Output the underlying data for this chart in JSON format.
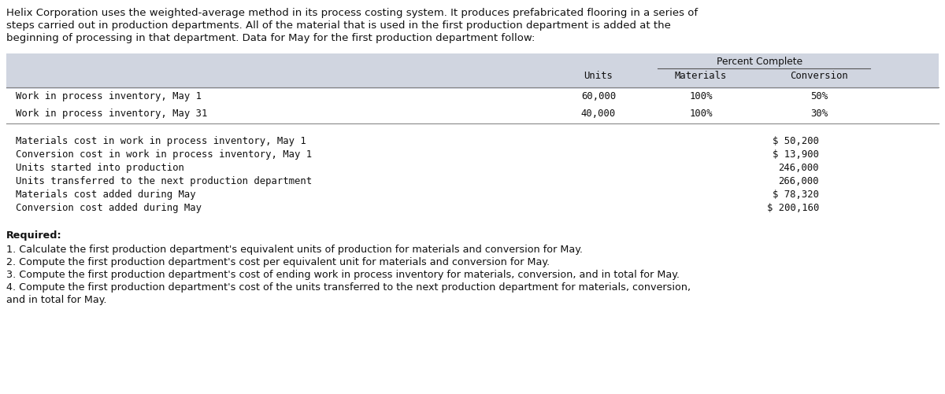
{
  "bg_color": "#ffffff",
  "intro_lines": [
    "Helix Corporation uses the weighted-average method in its process costing system. It produces prefabricated flooring in a series of",
    "steps carried out in production departments. All of the material that is used in the first production department is added at the",
    "beginning of processing in that department. Data for May for the first production department follow:"
  ],
  "table_header_group": "Percent Complete",
  "table_col_headers": [
    "Units",
    "Materials",
    "Conversion"
  ],
  "table_rows": [
    [
      "Work in process inventory, May 1",
      "60,000",
      "100%",
      "50%"
    ],
    [
      "Work in process inventory, May 31",
      "40,000",
      "100%",
      "30%"
    ]
  ],
  "data_rows": [
    [
      "Materials cost in work in process inventory, May 1",
      "$ 50,200"
    ],
    [
      "Conversion cost in work in process inventory, May 1",
      "$ 13,900"
    ],
    [
      "Units started into production",
      "246,000"
    ],
    [
      "Units transferred to the next production department",
      "266,000"
    ],
    [
      "Materials cost added during May",
      "$ 78,320"
    ],
    [
      "Conversion cost added during May",
      "$ 200,160"
    ]
  ],
  "required_label": "Required:",
  "required_items": [
    "1. Calculate the first production department's equivalent units of production for materials and conversion for May.",
    "2. Compute the first production department's cost per equivalent unit for materials and conversion for May.",
    "3. Compute the first production department's cost of ending work in process inventory for materials, conversion, and in total for May.",
    "4. Compute the first production department's cost of the units transferred to the next production department for materials, conversion,",
    "and in total for May."
  ],
  "table_header_bg": "#d0d5e0",
  "monospace_font": "DejaVu Sans Mono",
  "normal_font": "DejaVu Sans",
  "intro_fontsize": 9.5,
  "table_fontsize": 8.8,
  "required_fontsize": 9.2
}
